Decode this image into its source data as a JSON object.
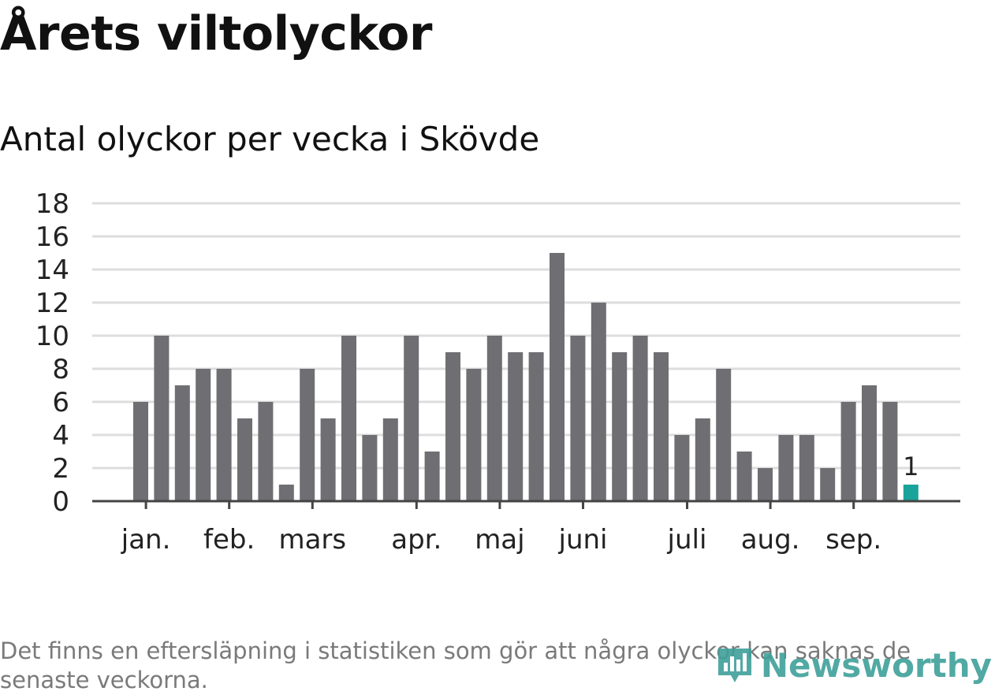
{
  "title": "Årets viltolyckor",
  "subtitle": "Antal olyckor per vecka i Skövde",
  "note": "Det finns en eftersläpning i statistiken som gör att några olyckor kan saknas de senaste veckorna.",
  "logo": {
    "name": "Newsworthy",
    "icon": "bar-chart-logo-icon"
  },
  "colors": {
    "bar": "#6e6e73",
    "highlight": "#1aa39a",
    "grid": "#dddddd",
    "axis": "#444444"
  },
  "chart_data": {
    "type": "bar",
    "title": "Antal olyckor per vecka i Skövde",
    "xlabel": "",
    "ylabel": "",
    "ylim": [
      0,
      18
    ],
    "yticks": [
      0,
      2,
      4,
      6,
      8,
      10,
      12,
      14,
      16,
      18
    ],
    "weeks": [
      1,
      2,
      3,
      4,
      5,
      6,
      7,
      8,
      9,
      10,
      11,
      12,
      13,
      14,
      15,
      16,
      17,
      18,
      19,
      20,
      21,
      22,
      23,
      24,
      25,
      26,
      27,
      28,
      29,
      30,
      31,
      32,
      33,
      34,
      35,
      36,
      37,
      38
    ],
    "values": [
      6,
      10,
      7,
      8,
      8,
      5,
      6,
      1,
      8,
      5,
      10,
      4,
      5,
      10,
      3,
      9,
      8,
      10,
      9,
      9,
      15,
      10,
      12,
      9,
      10,
      9,
      4,
      5,
      8,
      3,
      2,
      4,
      4,
      2,
      6,
      7,
      6,
      1
    ],
    "highlight_index": 37,
    "highlight_label": "1",
    "month_ticks": [
      {
        "label": "jan.",
        "week": 1.25
      },
      {
        "label": "feb.",
        "week": 5.25
      },
      {
        "label": "mars",
        "week": 9.25
      },
      {
        "label": "apr.",
        "week": 14.25
      },
      {
        "label": "maj",
        "week": 18.25
      },
      {
        "label": "juni",
        "week": 22.25
      },
      {
        "label": "juli",
        "week": 27.25
      },
      {
        "label": "aug.",
        "week": 31.25
      },
      {
        "label": "sep.",
        "week": 35.25
      }
    ]
  }
}
